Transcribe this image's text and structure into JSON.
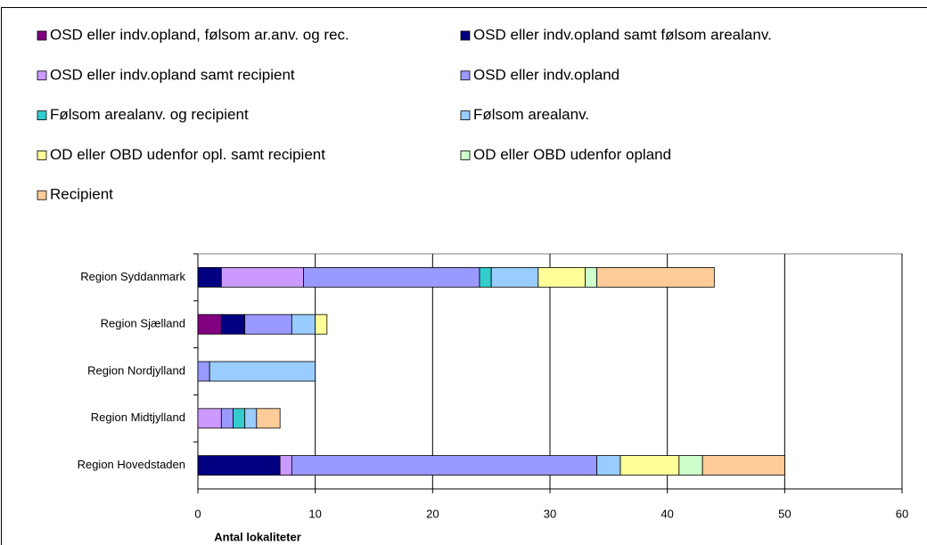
{
  "chart_data": {
    "type": "stacked-bar-horizontal",
    "x_label": "Antal lokaliteter",
    "categories": [
      "Region Syddanmark",
      "Region Sjælland",
      "Region Nordjylland",
      "Region Midtjylland",
      "Region Hovedstaden"
    ],
    "series": [
      {
        "name": "OSD eller indv.opland, følsom ar.anv. og rec.",
        "color": "#800080",
        "values": [
          0,
          2,
          0,
          0,
          0
        ]
      },
      {
        "name": "OSD eller indv.opland samt følsom arealanv.",
        "color": "#000080",
        "values": [
          2,
          2,
          0,
          0,
          7
        ]
      },
      {
        "name": "OSD eller indv.opland samt recipient",
        "color": "#CC99FF",
        "values": [
          7,
          0,
          0,
          2,
          1
        ]
      },
      {
        "name": "OSD eller indv.opland",
        "color": "#9999FF",
        "values": [
          15,
          4,
          1,
          1,
          26
        ]
      },
      {
        "name": "Følsom arealanv. og recipient",
        "color": "#33CCCC",
        "values": [
          1,
          0,
          0,
          1,
          0
        ]
      },
      {
        "name": "Følsom arealanv.",
        "color": "#99CCFF",
        "values": [
          4,
          2,
          9,
          1,
          2
        ]
      },
      {
        "name": "OD eller OBD udenfor opl. samt recipient",
        "color": "#FFFF99",
        "values": [
          4,
          1,
          0,
          0,
          5
        ]
      },
      {
        "name": "OD eller OBD udenfor opland",
        "color": "#CCFFCC",
        "values": [
          1,
          0,
          0,
          0,
          2
        ]
      },
      {
        "name": "Recipient",
        "color": "#FFCC99",
        "values": [
          10,
          0,
          0,
          2,
          7
        ]
      }
    ],
    "xlim": [
      0,
      60
    ],
    "xticks": [
      0,
      10,
      20,
      30,
      40,
      50,
      60
    ],
    "grid": true,
    "legend": "top"
  }
}
